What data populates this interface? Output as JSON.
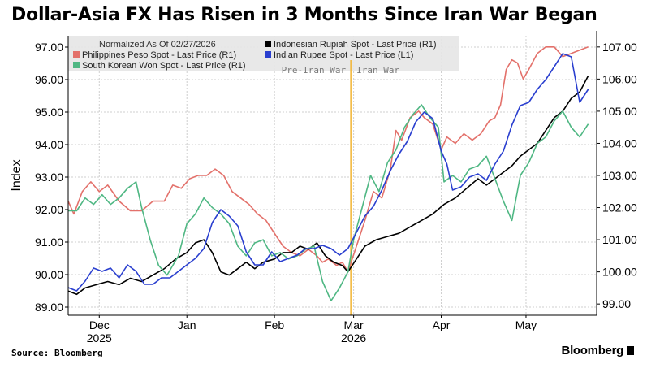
{
  "header": {
    "title": "Dollar-Asia FX Has Risen in 3 Months Since Iran War Began"
  },
  "footer": {
    "source": "Source: Bloomberg",
    "brand": "Bloomberg"
  },
  "chart_data": {
    "type": "line",
    "title": "Dollar-Asia FX Has Risen in 3 Months Since Iran War Began",
    "ylabel": "Index",
    "legend_title": "Normalized As Of 02/27/2026",
    "legend_position": "top-left",
    "grid": true,
    "x_range": [
      "2025-11-20",
      "2026-05-26"
    ],
    "y_left": {
      "range": [
        88.75,
        97.35
      ],
      "ticks": [
        "89.00",
        "90.00",
        "91.00",
        "92.00",
        "93.00",
        "94.00",
        "95.00",
        "96.00",
        "97.00"
      ]
    },
    "y_right": {
      "range": [
        98.65,
        107.35
      ],
      "ticks": [
        "99.00",
        "100.00",
        "101.00",
        "102.00",
        "103.00",
        "104.00",
        "105.00",
        "106.00",
        "107.00"
      ]
    },
    "x_ticks": [
      {
        "date": "2025-12-01",
        "label": "Dec",
        "year": "2025"
      },
      {
        "date": "2026-01-01",
        "label": "Jan",
        "year": ""
      },
      {
        "date": "2026-02-01",
        "label": "Feb",
        "year": ""
      },
      {
        "date": "2026-03-01",
        "label": "Mar",
        "year": "2026"
      },
      {
        "date": "2026-04-01",
        "label": "Apr",
        "year": ""
      },
      {
        "date": "2026-05-01",
        "label": "May",
        "year": ""
      }
    ],
    "event": {
      "date": "2026-02-28",
      "label_before": "Pre-Iran War",
      "label_after": "Iran War"
    },
    "series": [
      {
        "name": "Philippines Peso Spot - Last Price (R1)",
        "axis": "right",
        "color": "#e3716b",
        "points": [
          [
            "2025-11-20",
            102.2
          ],
          [
            "2025-11-22",
            101.8
          ],
          [
            "2025-11-25",
            102.5
          ],
          [
            "2025-11-28",
            102.8
          ],
          [
            "2025-12-01",
            102.5
          ],
          [
            "2025-12-04",
            102.7
          ],
          [
            "2025-12-08",
            102.2
          ],
          [
            "2025-12-12",
            101.9
          ],
          [
            "2025-12-16",
            101.9
          ],
          [
            "2025-12-20",
            102.2
          ],
          [
            "2025-12-24",
            102.2
          ],
          [
            "2025-12-27",
            102.7
          ],
          [
            "2025-12-30",
            102.6
          ],
          [
            "2026-01-02",
            102.9
          ],
          [
            "2026-01-05",
            103.0
          ],
          [
            "2026-01-08",
            103.0
          ],
          [
            "2026-01-11",
            103.2
          ],
          [
            "2026-01-14",
            103.0
          ],
          [
            "2026-01-17",
            102.5
          ],
          [
            "2026-01-20",
            102.3
          ],
          [
            "2026-01-23",
            102.1
          ],
          [
            "2026-01-26",
            101.8
          ],
          [
            "2026-01-29",
            101.6
          ],
          [
            "2026-02-01",
            101.2
          ],
          [
            "2026-02-04",
            100.8
          ],
          [
            "2026-02-07",
            100.6
          ],
          [
            "2026-02-10",
            100.5
          ],
          [
            "2026-02-13",
            100.7
          ],
          [
            "2026-02-16",
            100.5
          ],
          [
            "2026-02-18",
            100.3
          ],
          [
            "2026-02-20",
            100.4
          ],
          [
            "2026-02-23",
            100.2
          ],
          [
            "2026-02-25",
            100.3
          ],
          [
            "2026-02-27",
            100.0
          ],
          [
            "2026-03-02",
            100.8
          ],
          [
            "2026-03-05",
            101.6
          ],
          [
            "2026-03-08",
            102.5
          ],
          [
            "2026-03-11",
            102.3
          ],
          [
            "2026-03-14",
            103.2
          ],
          [
            "2026-03-16",
            104.4
          ],
          [
            "2026-03-18",
            104.1
          ],
          [
            "2026-03-21",
            104.8
          ],
          [
            "2026-03-24",
            105.0
          ],
          [
            "2026-03-26",
            104.8
          ],
          [
            "2026-03-29",
            104.6
          ],
          [
            "2026-04-01",
            103.8
          ],
          [
            "2026-04-03",
            104.2
          ],
          [
            "2026-04-06",
            104.0
          ],
          [
            "2026-04-09",
            104.3
          ],
          [
            "2026-04-12",
            104.1
          ],
          [
            "2026-04-15",
            104.3
          ],
          [
            "2026-04-18",
            104.7
          ],
          [
            "2026-04-20",
            104.8
          ],
          [
            "2026-04-22",
            105.2
          ],
          [
            "2026-04-24",
            106.3
          ],
          [
            "2026-04-26",
            106.6
          ],
          [
            "2026-04-28",
            106.5
          ],
          [
            "2026-04-30",
            106.0
          ],
          [
            "2026-05-02",
            106.3
          ],
          [
            "2026-05-05",
            106.8
          ],
          [
            "2026-05-08",
            107.0
          ],
          [
            "2026-05-11",
            107.0
          ],
          [
            "2026-05-14",
            106.7
          ],
          [
            "2026-05-17",
            106.8
          ],
          [
            "2026-05-20",
            106.9
          ],
          [
            "2026-05-23",
            107.0
          ]
        ]
      },
      {
        "name": "Indonesian Rupiah Spot - Last Price (R1)",
        "axis": "right",
        "color": "#000000",
        "points": [
          [
            "2025-11-20",
            99.4
          ],
          [
            "2025-11-23",
            99.3
          ],
          [
            "2025-11-26",
            99.5
          ],
          [
            "2025-11-30",
            99.6
          ],
          [
            "2025-12-04",
            99.7
          ],
          [
            "2025-12-08",
            99.6
          ],
          [
            "2025-12-12",
            99.8
          ],
          [
            "2025-12-16",
            99.7
          ],
          [
            "2025-12-20",
            99.9
          ],
          [
            "2025-12-24",
            100.1
          ],
          [
            "2025-12-28",
            100.4
          ],
          [
            "2026-01-01",
            100.6
          ],
          [
            "2026-01-04",
            100.9
          ],
          [
            "2026-01-07",
            101.0
          ],
          [
            "2026-01-10",
            100.6
          ],
          [
            "2026-01-13",
            100.0
          ],
          [
            "2026-01-16",
            99.9
          ],
          [
            "2026-01-19",
            100.1
          ],
          [
            "2026-01-22",
            100.3
          ],
          [
            "2026-01-25",
            100.1
          ],
          [
            "2026-01-28",
            100.3
          ],
          [
            "2026-02-01",
            100.4
          ],
          [
            "2026-02-04",
            100.6
          ],
          [
            "2026-02-07",
            100.6
          ],
          [
            "2026-02-10",
            100.8
          ],
          [
            "2026-02-13",
            100.7
          ],
          [
            "2026-02-16",
            100.9
          ],
          [
            "2026-02-19",
            100.5
          ],
          [
            "2026-02-22",
            100.3
          ],
          [
            "2026-02-25",
            100.2
          ],
          [
            "2026-02-27",
            100.0
          ],
          [
            "2026-03-02",
            100.4
          ],
          [
            "2026-03-05",
            100.8
          ],
          [
            "2026-03-09",
            101.0
          ],
          [
            "2026-03-13",
            101.1
          ],
          [
            "2026-03-17",
            101.2
          ],
          [
            "2026-03-21",
            101.4
          ],
          [
            "2026-03-25",
            101.6
          ],
          [
            "2026-03-29",
            101.8
          ],
          [
            "2026-04-02",
            102.1
          ],
          [
            "2026-04-06",
            102.3
          ],
          [
            "2026-04-10",
            102.6
          ],
          [
            "2026-04-14",
            102.9
          ],
          [
            "2026-04-17",
            102.7
          ],
          [
            "2026-04-20",
            102.9
          ],
          [
            "2026-04-23",
            103.1
          ],
          [
            "2026-04-26",
            103.3
          ],
          [
            "2026-04-29",
            103.6
          ],
          [
            "2026-05-02",
            103.8
          ],
          [
            "2026-05-05",
            104.0
          ],
          [
            "2026-05-08",
            104.4
          ],
          [
            "2026-05-11",
            104.8
          ],
          [
            "2026-05-14",
            105.0
          ],
          [
            "2026-05-17",
            105.4
          ],
          [
            "2026-05-20",
            105.6
          ],
          [
            "2026-05-23",
            106.1
          ]
        ]
      },
      {
        "name": "South Korean Won Spot - Last Price (R1)",
        "axis": "right",
        "color": "#4fb783",
        "points": [
          [
            "2025-11-20",
            101.9
          ],
          [
            "2025-11-23",
            101.9
          ],
          [
            "2025-11-26",
            102.3
          ],
          [
            "2025-11-29",
            102.1
          ],
          [
            "2025-12-02",
            102.4
          ],
          [
            "2025-12-05",
            102.1
          ],
          [
            "2025-12-08",
            102.3
          ],
          [
            "2025-12-11",
            102.6
          ],
          [
            "2025-12-14",
            102.8
          ],
          [
            "2025-12-16",
            102.0
          ],
          [
            "2025-12-19",
            101.0
          ],
          [
            "2025-12-22",
            100.2
          ],
          [
            "2025-12-25",
            99.9
          ],
          [
            "2025-12-29",
            100.5
          ],
          [
            "2026-01-01",
            101.5
          ],
          [
            "2026-01-04",
            101.8
          ],
          [
            "2026-01-07",
            102.3
          ],
          [
            "2026-01-10",
            102.0
          ],
          [
            "2026-01-13",
            101.8
          ],
          [
            "2026-01-16",
            101.5
          ],
          [
            "2026-01-19",
            100.8
          ],
          [
            "2026-01-22",
            100.5
          ],
          [
            "2026-01-25",
            100.9
          ],
          [
            "2026-01-28",
            101.0
          ],
          [
            "2026-01-31",
            100.5
          ],
          [
            "2026-02-03",
            100.6
          ],
          [
            "2026-02-06",
            100.4
          ],
          [
            "2026-02-09",
            100.5
          ],
          [
            "2026-02-12",
            100.7
          ],
          [
            "2026-02-15",
            100.8
          ],
          [
            "2026-02-18",
            99.7
          ],
          [
            "2026-02-21",
            99.1
          ],
          [
            "2026-02-24",
            99.5
          ],
          [
            "2026-02-27",
            100.0
          ],
          [
            "2026-03-01",
            101.0
          ],
          [
            "2026-03-04",
            102.0
          ],
          [
            "2026-03-07",
            103.0
          ],
          [
            "2026-03-10",
            102.5
          ],
          [
            "2026-03-13",
            103.4
          ],
          [
            "2026-03-16",
            103.8
          ],
          [
            "2026-03-19",
            104.5
          ],
          [
            "2026-03-22",
            104.9
          ],
          [
            "2026-03-25",
            105.2
          ],
          [
            "2026-03-28",
            104.8
          ],
          [
            "2026-03-31",
            104.5
          ],
          [
            "2026-04-02",
            102.8
          ],
          [
            "2026-04-05",
            103.0
          ],
          [
            "2026-04-08",
            102.8
          ],
          [
            "2026-04-11",
            103.2
          ],
          [
            "2026-04-14",
            103.3
          ],
          [
            "2026-04-17",
            103.6
          ],
          [
            "2026-04-20",
            102.9
          ],
          [
            "2026-04-23",
            102.2
          ],
          [
            "2026-04-26",
            101.6
          ],
          [
            "2026-04-29",
            103.0
          ],
          [
            "2026-05-02",
            103.4
          ],
          [
            "2026-05-05",
            104.0
          ],
          [
            "2026-05-08",
            104.2
          ],
          [
            "2026-05-11",
            104.7
          ],
          [
            "2026-05-14",
            105.0
          ],
          [
            "2026-05-17",
            104.5
          ],
          [
            "2026-05-20",
            104.2
          ],
          [
            "2026-05-23",
            104.6
          ]
        ]
      },
      {
        "name": "Indian Rupee Spot - Last Price (L1)",
        "axis": "left",
        "color": "#2a3fcf",
        "points": [
          [
            "2025-11-20",
            89.6
          ],
          [
            "2025-11-23",
            89.5
          ],
          [
            "2025-11-26",
            89.8
          ],
          [
            "2025-11-29",
            90.2
          ],
          [
            "2025-12-02",
            90.1
          ],
          [
            "2025-12-05",
            90.2
          ],
          [
            "2025-12-08",
            89.9
          ],
          [
            "2025-12-11",
            90.3
          ],
          [
            "2025-12-14",
            90.1
          ],
          [
            "2025-12-17",
            89.7
          ],
          [
            "2025-12-20",
            89.7
          ],
          [
            "2025-12-23",
            89.9
          ],
          [
            "2025-12-26",
            89.9
          ],
          [
            "2025-12-29",
            90.1
          ],
          [
            "2026-01-01",
            90.3
          ],
          [
            "2026-01-04",
            90.5
          ],
          [
            "2026-01-07",
            90.8
          ],
          [
            "2026-01-10",
            91.6
          ],
          [
            "2026-01-13",
            92.0
          ],
          [
            "2026-01-16",
            91.8
          ],
          [
            "2026-01-19",
            91.5
          ],
          [
            "2026-01-22",
            90.7
          ],
          [
            "2026-01-25",
            90.3
          ],
          [
            "2026-01-28",
            90.3
          ],
          [
            "2026-01-31",
            90.7
          ],
          [
            "2026-02-03",
            90.4
          ],
          [
            "2026-02-06",
            90.5
          ],
          [
            "2026-02-09",
            90.6
          ],
          [
            "2026-02-12",
            90.8
          ],
          [
            "2026-02-15",
            90.8
          ],
          [
            "2026-02-18",
            90.9
          ],
          [
            "2026-02-21",
            90.8
          ],
          [
            "2026-02-24",
            90.6
          ],
          [
            "2026-02-27",
            90.8
          ],
          [
            "2026-03-02",
            91.3
          ],
          [
            "2026-03-05",
            91.8
          ],
          [
            "2026-03-08",
            92.1
          ],
          [
            "2026-03-11",
            92.6
          ],
          [
            "2026-03-14",
            93.2
          ],
          [
            "2026-03-17",
            93.7
          ],
          [
            "2026-03-20",
            94.1
          ],
          [
            "2026-03-23",
            94.7
          ],
          [
            "2026-03-26",
            95.0
          ],
          [
            "2026-03-29",
            94.8
          ],
          [
            "2026-04-01",
            93.8
          ],
          [
            "2026-04-03",
            93.4
          ],
          [
            "2026-04-05",
            92.6
          ],
          [
            "2026-04-08",
            92.7
          ],
          [
            "2026-04-11",
            93.0
          ],
          [
            "2026-04-14",
            93.1
          ],
          [
            "2026-04-17",
            92.9
          ],
          [
            "2026-04-20",
            93.4
          ],
          [
            "2026-04-23",
            93.8
          ],
          [
            "2026-04-26",
            94.6
          ],
          [
            "2026-04-29",
            95.2
          ],
          [
            "2026-05-02",
            95.3
          ],
          [
            "2026-05-05",
            95.7
          ],
          [
            "2026-05-08",
            96.0
          ],
          [
            "2026-05-11",
            96.4
          ],
          [
            "2026-05-14",
            96.8
          ],
          [
            "2026-05-17",
            96.7
          ],
          [
            "2026-05-20",
            95.3
          ],
          [
            "2026-05-23",
            95.7
          ]
        ]
      }
    ]
  }
}
